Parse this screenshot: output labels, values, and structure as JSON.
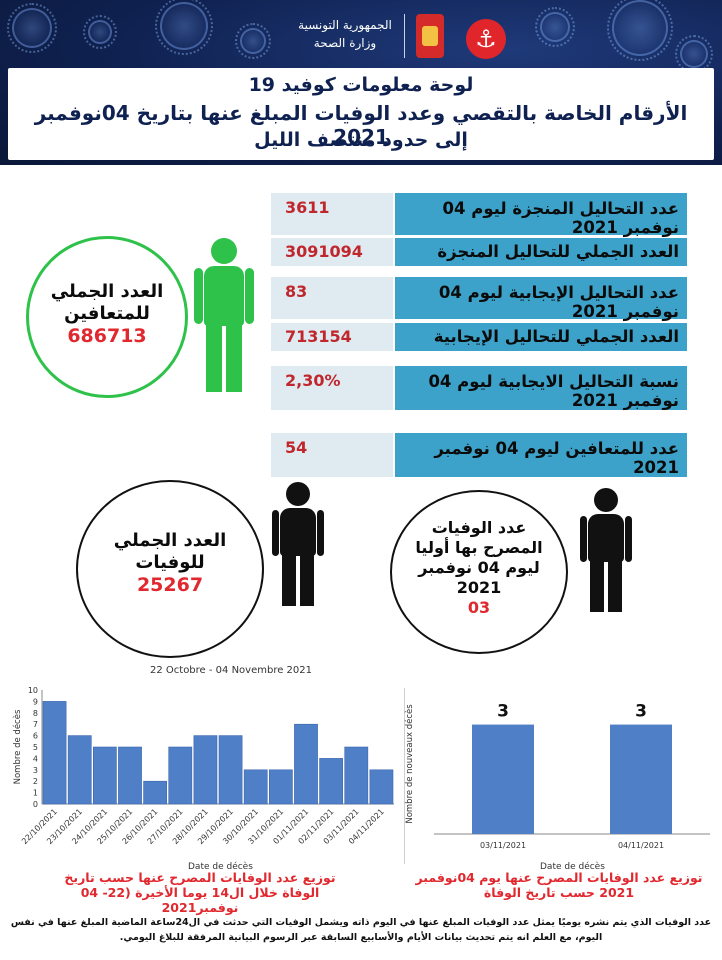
{
  "header": {
    "ministry_line1": "الجمهورية التونسية",
    "ministry_line2": "وزارة الصحة",
    "title_line1": "لوحة معلومات كوفيد 19",
    "title_line2": "الأرقام الخاصة بالتقصي وعدد الوفيات المبلغ عنها بتاريخ 04نوفمبر 2021",
    "title_line3": "إلى حدود منتصف الليل"
  },
  "stats": [
    {
      "label": "عدد التحاليل المنجزة ليوم 04 نوفمبر 2021",
      "value": "3611"
    },
    {
      "label": "العدد الجملي للتحاليل المنجزة",
      "value": "3091094"
    },
    {
      "label": "عدد التحاليل الإيجابية ليوم 04 نوفمبر 2021",
      "value": "83"
    },
    {
      "label": "العدد الجملي للتحاليل الإيجابية",
      "value": "713154"
    },
    {
      "label": "نسبة التحاليل الايجابية ليوم 04 نوفمبر 2021",
      "value": "2,30%"
    },
    {
      "label": "عدد للمتعافين ليوم 04 نوفمبر 2021",
      "value": "54"
    }
  ],
  "recovered_circle": {
    "label_line1": "العدد الجملي",
    "label_line2": "للمتعافين",
    "value": "686713"
  },
  "deaths_circle": {
    "label_line1": "العدد الجملي",
    "label_line2": "للوفيات",
    "value": "25267"
  },
  "daily_deaths_circle": {
    "label_line1": "عدد الوفيات",
    "label_line2": "المصرح بها أوليا",
    "label_line3": "ليوم 04 نوفمبر",
    "label_line4": "2021",
    "value": "03"
  },
  "colors": {
    "header_bg": "#0f2150",
    "teal": "#3ca2c9",
    "red_value": "#c0272d",
    "green_person": "#2ec24a",
    "bar_blue": "#4f7fc7"
  },
  "chart_data": [
    {
      "type": "bar",
      "title": "22 Octobre - 04 Novembre 2021",
      "xlabel": "Date de décès",
      "ylabel": "Nombre de décès",
      "ylim": [
        0,
        10
      ],
      "yticks": [
        "0",
        "1",
        "2",
        "3",
        "4",
        "5",
        "6",
        "7",
        "8",
        "9",
        "10"
      ],
      "categories": [
        "22/10/2021",
        "23/10/2021",
        "24/10/2021",
        "25/10/2021",
        "26/10/2021",
        "27/10/2021",
        "28/10/2021",
        "29/10/2021",
        "30/10/2021",
        "31/10/2021",
        "01/11/2021",
        "02/11/2021",
        "03/11/2021",
        "04/11/2021"
      ],
      "values": [
        9,
        6,
        5,
        5,
        2,
        5,
        6,
        6,
        3,
        3,
        7,
        4,
        5,
        3
      ],
      "caption": "توزيع عدد الوفايات المصرح عنها حسب تاريخ الوفاة خلال ال14 يوما الأخيرة (22- 04 نوفمبر2021"
    },
    {
      "type": "bar",
      "xlabel": "Date de décès",
      "ylabel": "Nombre de nouveaux décès",
      "categories": [
        "03/11/2021",
        "04/11/2021"
      ],
      "values": [
        3,
        3
      ],
      "data_labels": [
        "3",
        "3"
      ],
      "caption": "توزيع عدد الوفايات المصرح عنها يوم 04نوفمبر 2021 حسب تاريخ الوفاة"
    }
  ],
  "footnote": "عدد الوفيات الذي يتم نشره يوميًا يمثل عدد الوفيات المبلغ عنها في اليوم ذاته ويشمل الوفيات التي حدثت في ال24ساعة الماضية المبلغ عنها في نفس اليوم، مع العلم انه يتم تحديث بيانات الأيام والأسابيع السابقة عبر الرسوم البيانية المرفقة للبلاغ اليومي."
}
